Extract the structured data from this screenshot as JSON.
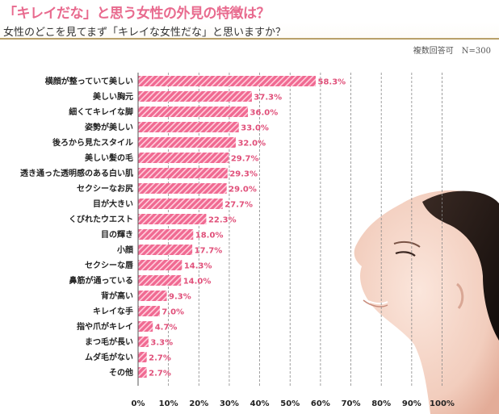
{
  "header": {
    "title": "「キレイだな」と思う女性の外見の特徴は？",
    "subtitle": "女性のどこを見てまず「キレイな女性だな」と思いますか？",
    "note": "複数回答可　N=300"
  },
  "colors": {
    "title": "#e86a8e",
    "bar": "#f06a92",
    "bar_stripe": "#ffd0de",
    "value_label": "#e0507a",
    "rule": "#b9a06a"
  },
  "chart_data": {
    "type": "bar",
    "orientation": "horizontal",
    "categories": [
      "横顔が整っていて美しい",
      "美しい胸元",
      "細くてキレイな脚",
      "姿勢が美しい",
      "後ろから見たスタイル",
      "美しい髪の毛",
      "透き通った透明感のある白い肌",
      "セクシーなお尻",
      "目が大きい",
      "くびれたウエスト",
      "目の輝き",
      "小顔",
      "セクシーな唇",
      "鼻筋が通っている",
      "背が高い",
      "キレイな手",
      "指や爪がキレイ",
      "まつ毛が長い",
      "ムダ毛がない",
      "その他"
    ],
    "values": [
      58.3,
      37.3,
      36.0,
      33.0,
      32.0,
      29.7,
      29.3,
      29.0,
      27.7,
      22.3,
      18.0,
      17.7,
      14.3,
      14.0,
      9.3,
      7.0,
      4.7,
      3.3,
      2.7,
      2.7
    ],
    "value_labels": [
      "58.3%",
      "37.3%",
      "36.0%",
      "33.0%",
      "32.0%",
      "29.7%",
      "29.3%",
      "29.0%",
      "27.7%",
      "22.3%",
      "18.0%",
      "17.7%",
      "14.3%",
      "14.0%",
      "9.3%",
      "7.0%",
      "4.7%",
      "3.3%",
      "2.7%",
      "2.7%"
    ],
    "xlim": [
      0,
      100
    ],
    "xticks": [
      "0%",
      "10%",
      "20%",
      "30%",
      "40%",
      "50%",
      "60%",
      "70%",
      "80%",
      "90%",
      "100%"
    ],
    "grid": "vertical dashed"
  }
}
